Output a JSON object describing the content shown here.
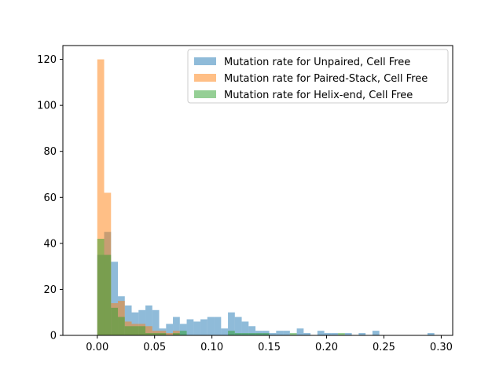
{
  "chart_data": {
    "type": "bar",
    "title": "",
    "xlabel": "",
    "ylabel": "",
    "xlim": [
      -0.03,
      0.31
    ],
    "ylim": [
      0,
      126
    ],
    "x_ticks": [
      0.0,
      0.05,
      0.1,
      0.15,
      0.2,
      0.25,
      0.3
    ],
    "x_tick_labels": [
      "0.00",
      "0.05",
      "0.10",
      "0.15",
      "0.20",
      "0.25",
      "0.30"
    ],
    "y_ticks": [
      0,
      20,
      40,
      60,
      80,
      100,
      120
    ],
    "y_tick_labels": [
      "0",
      "20",
      "40",
      "60",
      "80",
      "100",
      "120"
    ],
    "grid": false,
    "legend_position": "upper-right",
    "series": [
      {
        "name": "Mutation rate for Unpaired, Cell Free",
        "color": "#1f77b4",
        "alpha": 0.5,
        "bin_edges": [
          0.0,
          0.006,
          0.012,
          0.018,
          0.024,
          0.03,
          0.036,
          0.042,
          0.048,
          0.054,
          0.06,
          0.066,
          0.072,
          0.078,
          0.084,
          0.09,
          0.096,
          0.102,
          0.108,
          0.114,
          0.12,
          0.126,
          0.132,
          0.138,
          0.144,
          0.15,
          0.156,
          0.162,
          0.168,
          0.174,
          0.18,
          0.186,
          0.192,
          0.198,
          0.204,
          0.21,
          0.216,
          0.222,
          0.228,
          0.234,
          0.24,
          0.246,
          0.252,
          0.258,
          0.264,
          0.27,
          0.276,
          0.282,
          0.288,
          0.294,
          0.3
        ],
        "counts": [
          35,
          45,
          32,
          17,
          13,
          10,
          11,
          13,
          11,
          3,
          5,
          8,
          5,
          7,
          6,
          7,
          8,
          8,
          3,
          10,
          8,
          6,
          4,
          2,
          2,
          1,
          2,
          2,
          0,
          3,
          1,
          0,
          2,
          1,
          1,
          0,
          1,
          0,
          1,
          0,
          2,
          0,
          0,
          0,
          0,
          0,
          0,
          0,
          1,
          0
        ]
      },
      {
        "name": "Mutation rate for Paired-Stack, Cell Free",
        "color": "#ff7f0e",
        "alpha": 0.5,
        "bin_edges": [
          0.0,
          0.006,
          0.012,
          0.018,
          0.024,
          0.03,
          0.036,
          0.042,
          0.048,
          0.054,
          0.06,
          0.066,
          0.072
        ],
        "counts": [
          120,
          62,
          14,
          15,
          6,
          5,
          5,
          4,
          2,
          2,
          1,
          2
        ]
      },
      {
        "name": "Mutation rate for Helix-end, Cell Free",
        "color": "#2ca02c",
        "alpha": 0.5,
        "bin_edges": [
          0.0,
          0.006,
          0.012,
          0.018,
          0.024,
          0.03,
          0.036,
          0.042,
          0.048,
          0.054,
          0.06,
          0.066,
          0.072,
          0.078,
          0.084,
          0.09,
          0.096,
          0.102,
          0.108,
          0.114,
          0.12,
          0.126,
          0.132,
          0.138,
          0.144,
          0.15,
          0.156,
          0.162,
          0.168,
          0.174,
          0.18,
          0.186,
          0.192,
          0.198,
          0.204,
          0.21,
          0.216
        ],
        "counts": [
          42,
          35,
          12,
          8,
          4,
          4,
          4,
          1,
          1,
          1,
          0,
          1,
          2,
          0,
          0,
          0,
          0,
          0,
          0,
          2,
          1,
          1,
          1,
          1,
          1,
          0,
          0,
          0,
          1,
          0,
          0,
          0,
          0,
          0,
          0,
          1
        ]
      }
    ]
  }
}
